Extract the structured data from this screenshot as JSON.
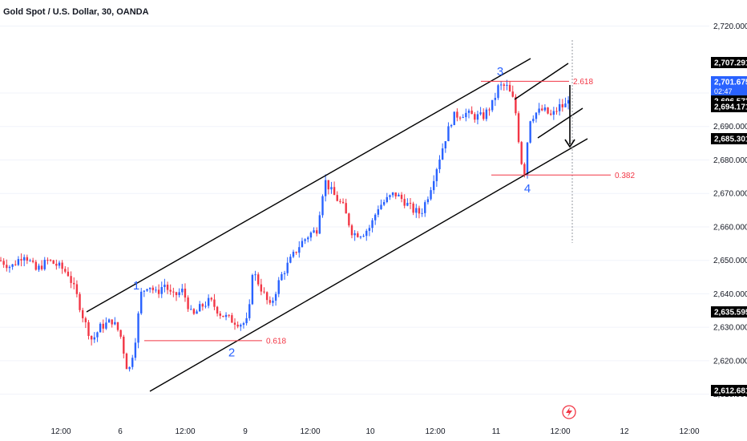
{
  "title": "Gold Spot / U.S. Dollar, 30, OANDA",
  "colors": {
    "up": "#2962ff",
    "down": "#f23645",
    "wave_label": "#2962ff",
    "fib": "#f23645",
    "channel": "#000000",
    "badge_dark": "#000000",
    "badge_current": "#2962ff"
  },
  "chart_data": {
    "type": "candlestick",
    "ylim": [
      2608,
      2723
    ],
    "y_ticks": [
      "2,720.000",
      "2,700.000",
      "2,690.000",
      "2,680.000",
      "2,670.000",
      "2,660.000",
      "2,650.000",
      "2,640.000",
      "2,630.000",
      "2,620.000",
      "2,610.000"
    ],
    "x_ticks": [
      "12:00",
      "6",
      "12:00",
      "9",
      "12:00",
      "10",
      "12:00",
      "11",
      "12:00",
      "12",
      "12:00"
    ],
    "price_badges": [
      {
        "label": "2,707.291",
        "kind": "dark"
      },
      {
        "label": "2,701.675",
        "sub": "02:47",
        "kind": "current"
      },
      {
        "label": "2,696.573",
        "kind": "dark"
      },
      {
        "label": "2,694.171",
        "kind": "dark"
      },
      {
        "label": "2,685.301",
        "kind": "dark"
      },
      {
        "label": "2,635.595",
        "kind": "dark"
      },
      {
        "label": "2,612.681",
        "kind": "dark"
      }
    ],
    "wave_labels": [
      "1",
      "2",
      "3",
      "4"
    ],
    "fib_levels": [
      {
        "label": "2.618",
        "value": 2703.5
      },
      {
        "label": "0.618",
        "value": 2626.0
      },
      {
        "label": "0.382",
        "value": 2675.5
      }
    ],
    "anchors": [
      [
        0,
        2650
      ],
      [
        14,
        2648
      ],
      [
        30,
        2652
      ],
      [
        45,
        2647
      ],
      [
        60,
        2650
      ],
      [
        75,
        2648
      ],
      [
        85,
        2646
      ],
      [
        95,
        2640
      ],
      [
        105,
        2632
      ],
      [
        115,
        2626
      ],
      [
        125,
        2630
      ],
      [
        140,
        2632
      ],
      [
        150,
        2628
      ],
      [
        160,
        2616
      ],
      [
        168,
        2625
      ],
      [
        176,
        2640
      ],
      [
        185,
        2643
      ],
      [
        195,
        2640
      ],
      [
        205,
        2643
      ],
      [
        215,
        2639
      ],
      [
        228,
        2641
      ],
      [
        240,
        2633
      ],
      [
        250,
        2636
      ],
      [
        262,
        2638
      ],
      [
        275,
        2634
      ],
      [
        290,
        2632
      ],
      [
        302,
        2631
      ],
      [
        310,
        2632
      ],
      [
        315,
        2647
      ],
      [
        325,
        2642
      ],
      [
        337,
        2636
      ],
      [
        350,
        2645
      ],
      [
        362,
        2650
      ],
      [
        375,
        2655
      ],
      [
        387,
        2658
      ],
      [
        395,
        2659
      ],
      [
        405,
        2674
      ],
      [
        415,
        2670
      ],
      [
        428,
        2666
      ],
      [
        440,
        2658
      ],
      [
        452,
        2658
      ],
      [
        462,
        2660
      ],
      [
        472,
        2666
      ],
      [
        482,
        2668
      ],
      [
        492,
        2670
      ],
      [
        503,
        2668
      ],
      [
        515,
        2665
      ],
      [
        525,
        2664
      ],
      [
        535,
        2670
      ],
      [
        545,
        2678
      ],
      [
        555,
        2686
      ],
      [
        565,
        2693
      ],
      [
        580,
        2694
      ],
      [
        592,
        2693
      ],
      [
        603,
        2693
      ],
      [
        615,
        2697
      ],
      [
        622,
        2702
      ],
      [
        632,
        2702
      ],
      [
        642,
        2697
      ],
      [
        650,
        2680
      ],
      [
        655,
        2676
      ],
      [
        660,
        2692
      ],
      [
        668,
        2694
      ],
      [
        678,
        2695
      ],
      [
        688,
        2693
      ],
      [
        698,
        2696
      ],
      [
        705,
        2696
      ],
      [
        712,
        2701
      ]
    ]
  },
  "annotations": {
    "wave_positions": [
      {
        "label": "1",
        "x": 170,
        "value": 2642.5
      },
      {
        "label": "2",
        "x": 289,
        "value": 2622.5
      },
      {
        "label": "3",
        "x": 624,
        "value": 2706.5
      },
      {
        "label": "4",
        "x": 658,
        "value": 2671.5
      }
    ]
  }
}
